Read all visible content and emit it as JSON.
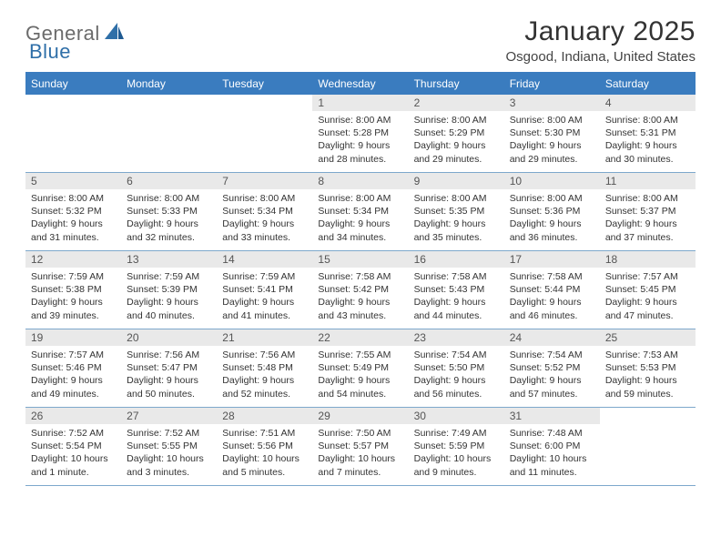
{
  "logo": {
    "text1": "General",
    "text2": "Blue"
  },
  "title": "January 2025",
  "location": "Osgood, Indiana, United States",
  "colors": {
    "header_bg": "#3a7cbf",
    "header_text": "#ffffff",
    "daynum_bg": "#e9e9e9",
    "daynum_text": "#555555",
    "body_text": "#333333",
    "row_border": "#7da8cc",
    "logo_gray": "#6b6b6b",
    "logo_blue": "#2f6fa8"
  },
  "typography": {
    "title_fontsize": 30,
    "location_fontsize": 15,
    "header_fontsize": 12,
    "daynum_fontsize": 12,
    "info_fontsize": 10.5
  },
  "weekdays": [
    "Sunday",
    "Monday",
    "Tuesday",
    "Wednesday",
    "Thursday",
    "Friday",
    "Saturday"
  ],
  "first_weekday_index": 3,
  "days": [
    {
      "n": 1,
      "sunrise": "8:00 AM",
      "sunset": "5:28 PM",
      "daylight": "9 hours and 28 minutes."
    },
    {
      "n": 2,
      "sunrise": "8:00 AM",
      "sunset": "5:29 PM",
      "daylight": "9 hours and 29 minutes."
    },
    {
      "n": 3,
      "sunrise": "8:00 AM",
      "sunset": "5:30 PM",
      "daylight": "9 hours and 29 minutes."
    },
    {
      "n": 4,
      "sunrise": "8:00 AM",
      "sunset": "5:31 PM",
      "daylight": "9 hours and 30 minutes."
    },
    {
      "n": 5,
      "sunrise": "8:00 AM",
      "sunset": "5:32 PM",
      "daylight": "9 hours and 31 minutes."
    },
    {
      "n": 6,
      "sunrise": "8:00 AM",
      "sunset": "5:33 PM",
      "daylight": "9 hours and 32 minutes."
    },
    {
      "n": 7,
      "sunrise": "8:00 AM",
      "sunset": "5:34 PM",
      "daylight": "9 hours and 33 minutes."
    },
    {
      "n": 8,
      "sunrise": "8:00 AM",
      "sunset": "5:34 PM",
      "daylight": "9 hours and 34 minutes."
    },
    {
      "n": 9,
      "sunrise": "8:00 AM",
      "sunset": "5:35 PM",
      "daylight": "9 hours and 35 minutes."
    },
    {
      "n": 10,
      "sunrise": "8:00 AM",
      "sunset": "5:36 PM",
      "daylight": "9 hours and 36 minutes."
    },
    {
      "n": 11,
      "sunrise": "8:00 AM",
      "sunset": "5:37 PM",
      "daylight": "9 hours and 37 minutes."
    },
    {
      "n": 12,
      "sunrise": "7:59 AM",
      "sunset": "5:38 PM",
      "daylight": "9 hours and 39 minutes."
    },
    {
      "n": 13,
      "sunrise": "7:59 AM",
      "sunset": "5:39 PM",
      "daylight": "9 hours and 40 minutes."
    },
    {
      "n": 14,
      "sunrise": "7:59 AM",
      "sunset": "5:41 PM",
      "daylight": "9 hours and 41 minutes."
    },
    {
      "n": 15,
      "sunrise": "7:58 AM",
      "sunset": "5:42 PM",
      "daylight": "9 hours and 43 minutes."
    },
    {
      "n": 16,
      "sunrise": "7:58 AM",
      "sunset": "5:43 PM",
      "daylight": "9 hours and 44 minutes."
    },
    {
      "n": 17,
      "sunrise": "7:58 AM",
      "sunset": "5:44 PM",
      "daylight": "9 hours and 46 minutes."
    },
    {
      "n": 18,
      "sunrise": "7:57 AM",
      "sunset": "5:45 PM",
      "daylight": "9 hours and 47 minutes."
    },
    {
      "n": 19,
      "sunrise": "7:57 AM",
      "sunset": "5:46 PM",
      "daylight": "9 hours and 49 minutes."
    },
    {
      "n": 20,
      "sunrise": "7:56 AM",
      "sunset": "5:47 PM",
      "daylight": "9 hours and 50 minutes."
    },
    {
      "n": 21,
      "sunrise": "7:56 AM",
      "sunset": "5:48 PM",
      "daylight": "9 hours and 52 minutes."
    },
    {
      "n": 22,
      "sunrise": "7:55 AM",
      "sunset": "5:49 PM",
      "daylight": "9 hours and 54 minutes."
    },
    {
      "n": 23,
      "sunrise": "7:54 AM",
      "sunset": "5:50 PM",
      "daylight": "9 hours and 56 minutes."
    },
    {
      "n": 24,
      "sunrise": "7:54 AM",
      "sunset": "5:52 PM",
      "daylight": "9 hours and 57 minutes."
    },
    {
      "n": 25,
      "sunrise": "7:53 AM",
      "sunset": "5:53 PM",
      "daylight": "9 hours and 59 minutes."
    },
    {
      "n": 26,
      "sunrise": "7:52 AM",
      "sunset": "5:54 PM",
      "daylight": "10 hours and 1 minute."
    },
    {
      "n": 27,
      "sunrise": "7:52 AM",
      "sunset": "5:55 PM",
      "daylight": "10 hours and 3 minutes."
    },
    {
      "n": 28,
      "sunrise": "7:51 AM",
      "sunset": "5:56 PM",
      "daylight": "10 hours and 5 minutes."
    },
    {
      "n": 29,
      "sunrise": "7:50 AM",
      "sunset": "5:57 PM",
      "daylight": "10 hours and 7 minutes."
    },
    {
      "n": 30,
      "sunrise": "7:49 AM",
      "sunset": "5:59 PM",
      "daylight": "10 hours and 9 minutes."
    },
    {
      "n": 31,
      "sunrise": "7:48 AM",
      "sunset": "6:00 PM",
      "daylight": "10 hours and 11 minutes."
    }
  ],
  "labels": {
    "sunrise": "Sunrise:",
    "sunset": "Sunset:",
    "daylight": "Daylight:"
  }
}
